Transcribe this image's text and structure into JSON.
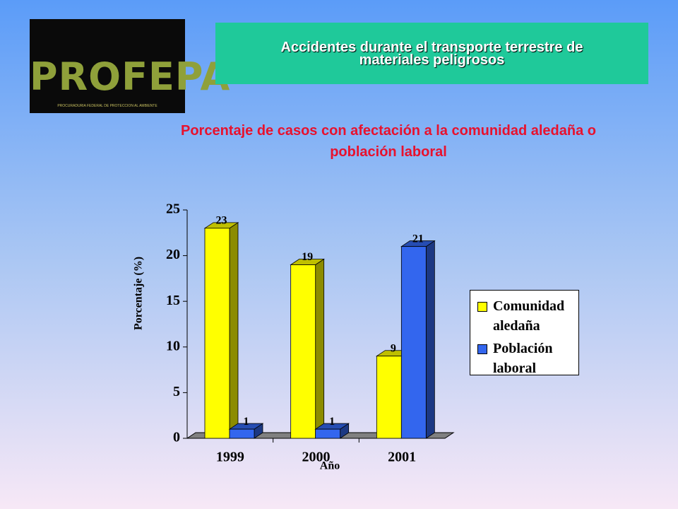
{
  "header": {
    "title": "Accidentes durante el transporte terrestre de materiales peligrosos",
    "logo": "PROFEPA",
    "logo_subtitle": "PROCURADURIA FEDERAL DE PROTECCION AL AMBIENTE"
  },
  "chart_data": {
    "type": "bar",
    "title": "Porcentaje de casos con afectación a la comunidad aledaña o población laboral",
    "x_label": "Año",
    "y_label": "Porcentaje (%)",
    "categories": [
      "1999",
      "2000",
      "2001"
    ],
    "series": [
      {
        "name": "Comunidad aledaña",
        "color": "#ffff00",
        "values": [
          23,
          19,
          9
        ]
      },
      {
        "name": "Población laboral",
        "color": "#3366ee",
        "values": [
          1,
          1,
          21
        ]
      }
    ],
    "ylim": [
      0,
      25
    ],
    "yticks": [
      0,
      5,
      10,
      15,
      20,
      25
    ],
    "legend": "right"
  }
}
